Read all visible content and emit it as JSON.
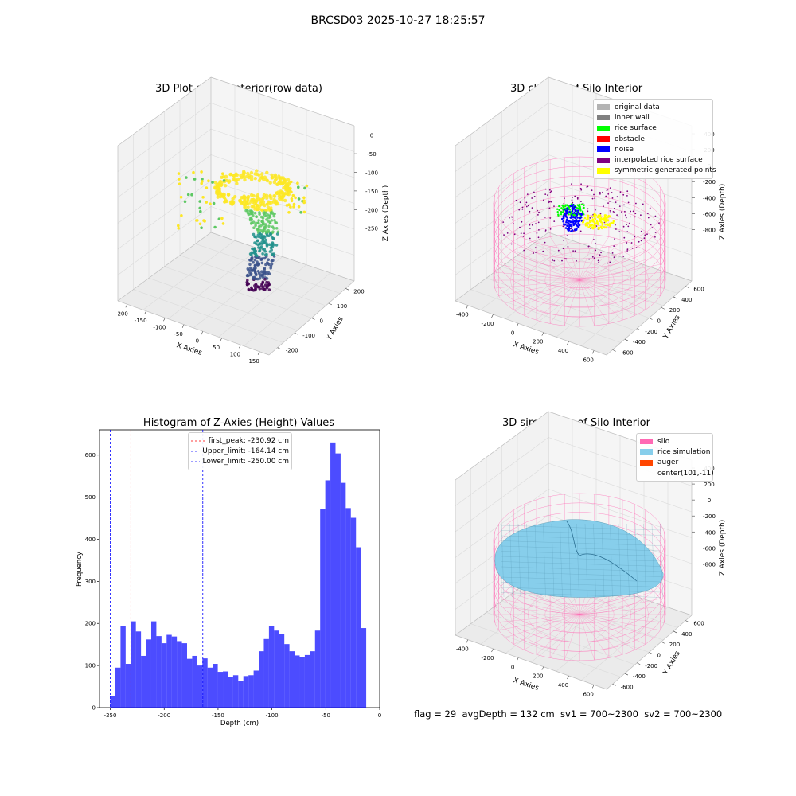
{
  "figure": {
    "suptitle": "BRCSD03 2025-10-27 18:25:57",
    "footer": "flag = 29  avgDepth = 132 cm  sv1 = 700~2300  sv2 = 700~2300"
  },
  "colors": {
    "pane": "#f2f2f2",
    "pane_dark": "#e8e8e8",
    "grid": "#dadada",
    "silo_wire": "#ff69b4",
    "histogram_bar": "#0000ff",
    "first_peak": "#ff0000",
    "limits": "#0000ff",
    "rice_sim": "#87ceeb",
    "viridis": [
      "#440154",
      "#3b528b",
      "#21908c",
      "#5dc863",
      "#fde725"
    ]
  },
  "chart_data": [
    {
      "type": "scatter",
      "subtype": "3d",
      "title": "3D Plot of Silo Interior(row data)",
      "xlabel": "X Axies",
      "ylabel": "Y Axies",
      "zlabel": "Z Axies (Depth)",
      "xticks": [
        "-200",
        "-150",
        "-100",
        "-50",
        "0",
        "50",
        "100",
        "150"
      ],
      "yticks": [
        "-200",
        "-100",
        "0",
        "100",
        "200"
      ],
      "zticks": [
        "0",
        "-50",
        "-100",
        "-150",
        "-200",
        "-250"
      ],
      "colormap": "viridis",
      "grid": true
    },
    {
      "type": "scatter",
      "subtype": "3d",
      "title": "3D classify of Silo Interior",
      "xlabel": "X Axies",
      "ylabel": "Y Axies",
      "zlabel": "Z Axies (Depth)",
      "xticks": [
        "-400",
        "-200",
        "0",
        "200",
        "400",
        "600"
      ],
      "yticks": [
        "-600",
        "-400",
        "-200",
        "0",
        "200",
        "400",
        "600"
      ],
      "zticks": [
        "400",
        "200",
        "0",
        "-200",
        "-400",
        "-600",
        "-800"
      ],
      "legend_position": "top-right",
      "legend": [
        {
          "label": "original data",
          "color": "#b3b3b3"
        },
        {
          "label": "inner wall",
          "color": "#808080"
        },
        {
          "label": "rice surface",
          "color": "#00ff00"
        },
        {
          "label": "obstacle",
          "color": "#ff0000"
        },
        {
          "label": "noise",
          "color": "#0000ff"
        },
        {
          "label": "interpolated rice surface",
          "color": "#800080"
        },
        {
          "label": "symmetric generated points",
          "color": "#ffff00"
        }
      ],
      "grid": true
    },
    {
      "type": "bar",
      "subtype": "histogram",
      "title": "Histogram of Z-Axies (Height) Values",
      "xlabel": "Depth (cm)",
      "ylabel": "Frequency",
      "xlim": [
        -260,
        0
      ],
      "ylim": [
        0,
        660
      ],
      "xticks": [
        -250,
        -200,
        -150,
        -100,
        -50,
        0
      ],
      "yticks": [
        0,
        100,
        200,
        300,
        400,
        500,
        600
      ],
      "bin_start": -250,
      "bin_width": 4.75,
      "values": [
        28,
        95,
        193,
        104,
        205,
        181,
        123,
        162,
        205,
        170,
        153,
        173,
        169,
        158,
        153,
        116,
        123,
        100,
        117,
        95,
        104,
        85,
        86,
        72,
        77,
        64,
        75,
        77,
        88,
        134,
        163,
        193,
        183,
        175,
        151,
        134,
        124,
        121,
        125,
        134,
        183,
        471,
        540,
        630,
        604,
        534,
        474,
        451,
        381,
        189
      ],
      "lines": [
        {
          "label": "first_peak: -230.92 cm",
          "x": -230.92,
          "color": "#ff0000",
          "style": "dashed"
        },
        {
          "label": "Upper_limit: -164.14 cm",
          "x": -164.14,
          "color": "#0000ff",
          "style": "dashed"
        },
        {
          "label": "Lower_limit: -250.00 cm",
          "x": -250.0,
          "color": "#0000ff",
          "style": "dashed"
        }
      ],
      "legend_position": "upper center",
      "grid": false
    },
    {
      "type": "area",
      "subtype": "3d-surface",
      "title": "3D simulation of Silo Interior",
      "xlabel": "X Axies",
      "ylabel": "Y Axies",
      "zlabel": "Z Axies (Depth)",
      "xticks": [
        "-400",
        "-200",
        "0",
        "200",
        "400",
        "600"
      ],
      "yticks": [
        "-600",
        "-400",
        "-200",
        "0",
        "200",
        "400",
        "600"
      ],
      "zticks": [
        "400",
        "200",
        "0",
        "-200",
        "-400",
        "-600",
        "-800"
      ],
      "legend_position": "top-right",
      "legend": [
        {
          "label": "silo",
          "color": "#ff69b4"
        },
        {
          "label": "rice simulation",
          "color": "#87ceeb"
        },
        {
          "label": "auger",
          "color": "#ff4500"
        },
        {
          "label": "center(101,-11)",
          "color": ""
        }
      ],
      "grid": true
    }
  ]
}
